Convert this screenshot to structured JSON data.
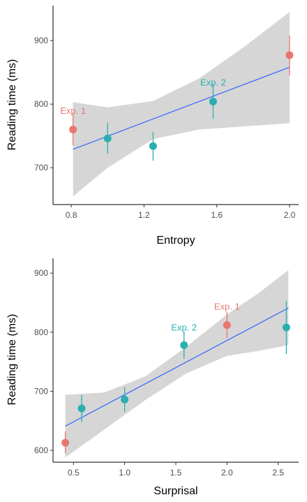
{
  "chart_data": [
    {
      "type": "scatter",
      "title": "",
      "xlabel": "Entropy",
      "ylabel": "Reading time (ms)",
      "xlim": [
        0.7,
        2.05
      ],
      "ylim": [
        642,
        955
      ],
      "xticks": [
        0.8,
        1.2,
        1.6,
        2.0
      ],
      "xtick_labels": [
        "0.8",
        "1.2",
        "1.6",
        "2.0"
      ],
      "yticks": [
        700,
        800,
        900
      ],
      "ytick_labels": [
        "700",
        "800",
        "900"
      ],
      "grid": false,
      "series": [
        {
          "group": "exp1",
          "color": "#e8776f",
          "points": [
            {
              "x": 0.81,
              "y": 760,
              "lo": 735,
              "hi": 785
            },
            {
              "x": 2.0,
              "y": 877,
              "lo": 845,
              "hi": 908
            }
          ]
        },
        {
          "group": "exp2",
          "color": "#2aafb0",
          "points": [
            {
              "x": 1.0,
              "y": 746,
              "lo": 722,
              "hi": 771
            },
            {
              "x": 1.25,
              "y": 734,
              "lo": 711,
              "hi": 756
            },
            {
              "x": 1.58,
              "y": 804,
              "lo": 777,
              "hi": 832
            }
          ]
        }
      ],
      "fit": {
        "x0": 0.81,
        "x1": 2.0,
        "y0": 729,
        "y1": 858,
        "color": "#3366ff",
        "band_x": [
          0.81,
          1.0,
          1.25,
          1.5,
          1.75,
          2.0
        ],
        "band_lo": [
          655,
          700,
          745,
          760,
          765,
          770
        ],
        "band_hi": [
          803,
          795,
          805,
          840,
          890,
          945
        ]
      },
      "annotations": [
        {
          "text": "Exp. 1",
          "x": 0.81,
          "y": 785,
          "color": "#e8776f"
        },
        {
          "text": "Exp. 2",
          "x": 1.58,
          "y": 829,
          "color": "#2aafb0"
        }
      ]
    },
    {
      "type": "scatter",
      "title": "",
      "xlabel": "Surprisal",
      "ylabel": "Reading time (ms)",
      "xlim": [
        0.3,
        2.7
      ],
      "ylim": [
        580,
        925
      ],
      "xticks": [
        0.5,
        1.0,
        1.5,
        2.0,
        2.5
      ],
      "xtick_labels": [
        "0.5",
        "1.0",
        "1.5",
        "2.0",
        "2.5"
      ],
      "yticks": [
        600,
        700,
        800,
        900
      ],
      "ytick_labels": [
        "600",
        "700",
        "800",
        "900"
      ],
      "grid": false,
      "series": [
        {
          "group": "exp1",
          "color": "#e8776f",
          "points": [
            {
              "x": 0.42,
              "y": 613,
              "lo": 595,
              "hi": 632
            },
            {
              "x": 2.0,
              "y": 812,
              "lo": 790,
              "hi": 835
            }
          ]
        },
        {
          "group": "exp2",
          "color": "#2aafb0",
          "points": [
            {
              "x": 0.58,
              "y": 671,
              "lo": 648,
              "hi": 694
            },
            {
              "x": 1.0,
              "y": 686,
              "lo": 665,
              "hi": 707
            },
            {
              "x": 1.58,
              "y": 778,
              "lo": 755,
              "hi": 801
            },
            {
              "x": 2.58,
              "y": 808,
              "lo": 763,
              "hi": 853
            }
          ]
        }
      ],
      "fit": {
        "x0": 0.42,
        "x1": 2.6,
        "y0": 641,
        "y1": 841,
        "color": "#3366ff",
        "band_x": [
          0.42,
          0.8,
          1.2,
          1.6,
          2.0,
          2.3,
          2.6
        ],
        "band_lo": [
          588,
          635,
          685,
          730,
          760,
          768,
          778
        ],
        "band_hi": [
          694,
          698,
          725,
          775,
          830,
          865,
          905
        ]
      },
      "annotations": [
        {
          "text": "Exp. 1",
          "x": 2.0,
          "y": 838,
          "color": "#e8776f"
        },
        {
          "text": "Exp. 2",
          "x": 1.58,
          "y": 803,
          "color": "#2aafb0"
        }
      ]
    }
  ]
}
